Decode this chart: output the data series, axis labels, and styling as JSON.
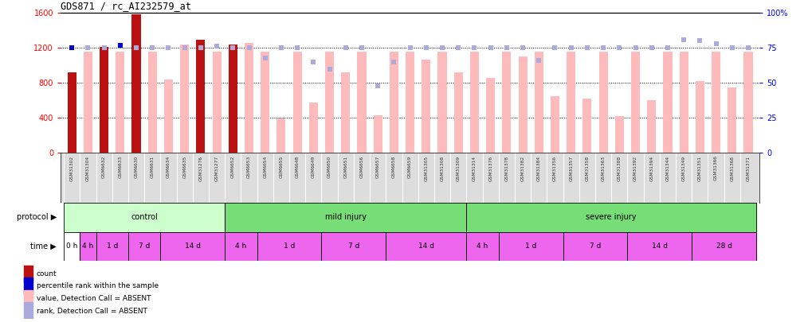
{
  "title": "GDS871 / rc_AI232579_at",
  "samples": [
    "GSM31302",
    "GSM31304",
    "GSM6632",
    "GSM6633",
    "GSM6630",
    "GSM6631",
    "GSM6634",
    "GSM6635",
    "GSM31276",
    "GSM31277",
    "GSM6652",
    "GSM6653",
    "GSM6654",
    "GSM6655",
    "GSM6648",
    "GSM6649",
    "GSM6650",
    "GSM6651",
    "GSM6656",
    "GSM6657",
    "GSM6658",
    "GSM6659",
    "GSM31305",
    "GSM31308",
    "GSM31309",
    "GSM31314",
    "GSM31376",
    "GSM31378",
    "GSM31382",
    "GSM31384",
    "GSM31356",
    "GSM31357",
    "GSM31358",
    "GSM31363",
    "GSM31388",
    "GSM31392",
    "GSM31394",
    "GSM31344",
    "GSM31349",
    "GSM31351",
    "GSM31366",
    "GSM31368",
    "GSM31371"
  ],
  "bar_values": [
    920,
    1160,
    1210,
    1160,
    1580,
    1160,
    840,
    1240,
    1290,
    1160,
    1240,
    1260,
    1160,
    390,
    1160,
    580,
    1160,
    920,
    1160,
    430,
    1160,
    1160,
    1070,
    1160,
    920,
    1160,
    860,
    1160,
    1100,
    1160,
    650,
    1160,
    620,
    1160,
    420,
    1160,
    600,
    1160,
    1160,
    820,
    1160,
    750,
    1160
  ],
  "bar_is_dark": [
    true,
    false,
    true,
    false,
    true,
    false,
    false,
    false,
    true,
    false,
    true,
    false,
    false,
    false,
    false,
    false,
    false,
    false,
    false,
    false,
    false,
    false,
    false,
    false,
    false,
    false,
    false,
    false,
    false,
    false,
    false,
    false,
    false,
    false,
    false,
    false,
    false,
    false,
    false,
    false,
    false,
    false,
    false
  ],
  "rank_values_pct": [
    75,
    75,
    75,
    77,
    75,
    75,
    75,
    75,
    75,
    76,
    75,
    75,
    68,
    75,
    75,
    65,
    60,
    75,
    75,
    48,
    65,
    75,
    75,
    75,
    75,
    75,
    75,
    75,
    75,
    66,
    75,
    75,
    75,
    75,
    75,
    75,
    75,
    75,
    81,
    80,
    78,
    75,
    75
  ],
  "rank_is_dark": [
    true,
    false,
    false,
    true,
    false,
    false,
    false,
    false,
    false,
    false,
    false,
    false,
    false,
    false,
    false,
    false,
    false,
    false,
    false,
    false,
    false,
    false,
    false,
    false,
    false,
    false,
    false,
    false,
    false,
    false,
    false,
    false,
    false,
    false,
    false,
    false,
    false,
    false,
    false,
    false,
    false,
    false,
    false
  ],
  "ylim_left": [
    0,
    1600
  ],
  "ylim_right": [
    0,
    100
  ],
  "yticks_left": [
    0,
    400,
    800,
    1200,
    1600
  ],
  "yticks_right": [
    0,
    25,
    50,
    75,
    100
  ],
  "yticklabels_right": [
    "0",
    "25",
    "50",
    "75",
    "100%"
  ],
  "bar_color_dark": "#bb1111",
  "bar_color_light": "#ffbbbb",
  "rank_color_dark": "#0000cc",
  "rank_color_light": "#aaaadd",
  "proto_groups": [
    {
      "label": "control",
      "start": 0,
      "end": 9,
      "color": "#ccffcc"
    },
    {
      "label": "mild injury",
      "start": 10,
      "end": 24,
      "color": "#77dd77"
    },
    {
      "label": "severe injury",
      "start": 25,
      "end": 42,
      "color": "#77dd77"
    }
  ],
  "time_groups": [
    {
      "label": "0 h",
      "start": 0,
      "end": 0,
      "color": "#ffffff"
    },
    {
      "label": "4 h",
      "start": 1,
      "end": 1,
      "color": "#ee66ee"
    },
    {
      "label": "1 d",
      "start": 2,
      "end": 3,
      "color": "#ee66ee"
    },
    {
      "label": "7 d",
      "start": 4,
      "end": 5,
      "color": "#ee66ee"
    },
    {
      "label": "14 d",
      "start": 6,
      "end": 9,
      "color": "#ee66ee"
    },
    {
      "label": "4 h",
      "start": 10,
      "end": 11,
      "color": "#ee66ee"
    },
    {
      "label": "1 d",
      "start": 12,
      "end": 15,
      "color": "#ee66ee"
    },
    {
      "label": "7 d",
      "start": 16,
      "end": 19,
      "color": "#ee66ee"
    },
    {
      "label": "14 d",
      "start": 20,
      "end": 24,
      "color": "#ee66ee"
    },
    {
      "label": "4 h",
      "start": 25,
      "end": 26,
      "color": "#ee66ee"
    },
    {
      "label": "1 d",
      "start": 27,
      "end": 30,
      "color": "#ee66ee"
    },
    {
      "label": "7 d",
      "start": 31,
      "end": 34,
      "color": "#ee66ee"
    },
    {
      "label": "14 d",
      "start": 35,
      "end": 38,
      "color": "#ee66ee"
    },
    {
      "label": "28 d",
      "start": 39,
      "end": 42,
      "color": "#ee66ee"
    }
  ],
  "legend_items": [
    {
      "color": "#bb1111",
      "label": "count"
    },
    {
      "color": "#0000cc",
      "label": "percentile rank within the sample"
    },
    {
      "color": "#ffbbbb",
      "label": "value, Detection Call = ABSENT"
    },
    {
      "color": "#aaaadd",
      "label": "rank, Detection Call = ABSENT"
    }
  ],
  "label_bg_color": "#dddddd",
  "chart_bg_color": "#ffffff"
}
